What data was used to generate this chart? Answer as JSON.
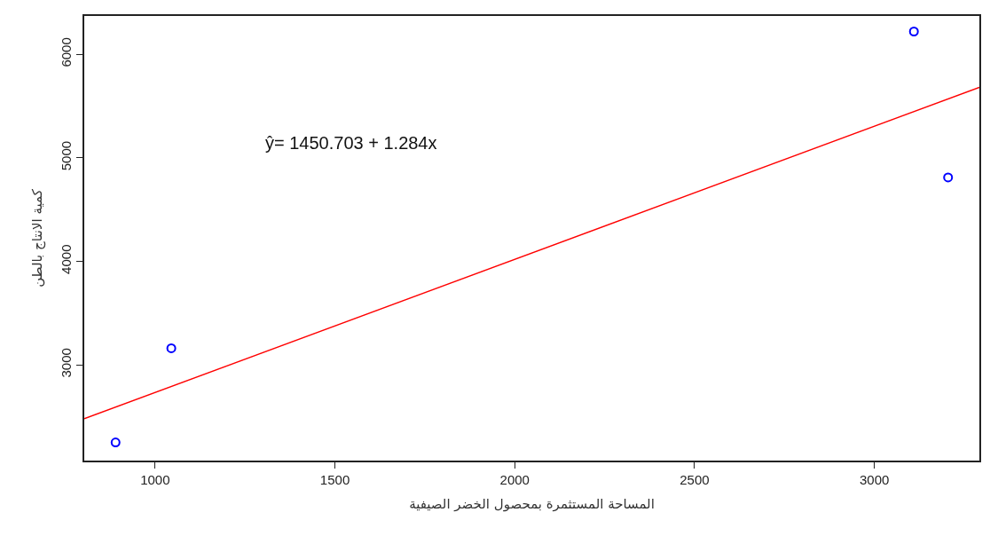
{
  "chart_data": {
    "type": "scatter",
    "xlabel": "المساحة المستثمرة بمحصول الخضر الصيفية",
    "ylabel": "كمية الانتاج بالطن",
    "annotations": [
      "ŷ= 1450.703 + 1.284x"
    ],
    "series": [
      {
        "color": "#0000ff",
        "marker": "circle",
        "x": [
          890,
          1045,
          3110,
          3205
        ],
        "values": [
          2250,
          3160,
          6220,
          4810
        ]
      },
      {
        "type": "line",
        "color": "#ff0000",
        "marker": "none",
        "line_style": "solid",
        "x": [
          803,
          3292
        ],
        "values": [
          2480,
          5680
        ]
      }
    ],
    "xlim": [
      803,
      3292
    ],
    "ylim": [
      2075,
      6370
    ],
    "xticks": [
      1000,
      1500,
      2000,
      2500,
      3000
    ],
    "yticks": [
      3000,
      4000,
      5000,
      6000
    ]
  }
}
